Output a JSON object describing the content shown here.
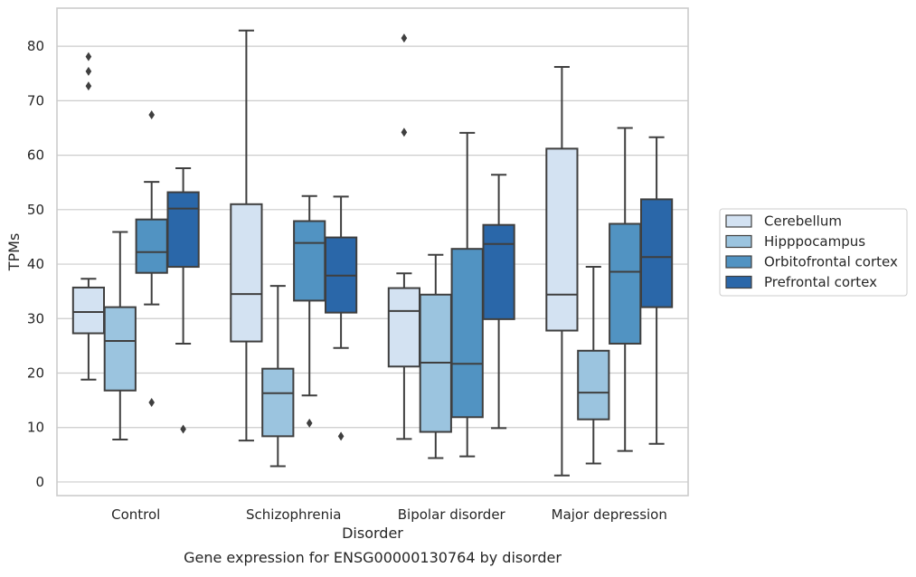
{
  "chart_data": {
    "type": "box",
    "title": "",
    "caption": "Gene expression for ENSG00000130764 by disorder",
    "xlabel": "Disorder",
    "ylabel": "TPMs",
    "ylim": [
      -2.5,
      87
    ],
    "yticks": [
      0,
      10,
      20,
      30,
      40,
      50,
      60,
      70,
      80
    ],
    "grid": "horizontal",
    "legend_position": "right",
    "categories": [
      "Control",
      "Schizophrenia",
      "Bipolar disorder",
      "Major depression"
    ],
    "series": [
      {
        "name": "Cerebellum",
        "color": "#d3e2f2",
        "boxes": [
          {
            "whislo": 18.8,
            "q1": 27.3,
            "med": 31.2,
            "q3": 35.7,
            "whishi": 37.3,
            "fliers": [
              72.7,
              75.4,
              78.1
            ]
          },
          {
            "whislo": 7.6,
            "q1": 25.8,
            "med": 34.5,
            "q3": 51.0,
            "whishi": 82.9,
            "fliers": []
          },
          {
            "whislo": 7.9,
            "q1": 21.2,
            "med": 31.4,
            "q3": 35.6,
            "whishi": 38.3,
            "fliers": [
              64.2,
              81.5
            ]
          },
          {
            "whislo": 1.2,
            "q1": 27.8,
            "med": 34.4,
            "q3": 61.2,
            "whishi": 76.2,
            "fliers": []
          }
        ]
      },
      {
        "name": "Hipppocampus",
        "color": "#9bc4df",
        "boxes": [
          {
            "whislo": 7.8,
            "q1": 16.8,
            "med": 25.9,
            "q3": 32.1,
            "whishi": 45.9,
            "fliers": []
          },
          {
            "whislo": 2.9,
            "q1": 8.4,
            "med": 16.3,
            "q3": 20.8,
            "whishi": 36.0,
            "fliers": []
          },
          {
            "whislo": 4.4,
            "q1": 9.2,
            "med": 21.9,
            "q3": 34.4,
            "whishi": 41.7,
            "fliers": []
          },
          {
            "whislo": 3.4,
            "q1": 11.5,
            "med": 16.4,
            "q3": 24.1,
            "whishi": 39.5,
            "fliers": []
          }
        ]
      },
      {
        "name": "Orbitofrontal cortex",
        "color": "#5193c2",
        "boxes": [
          {
            "whislo": 32.6,
            "q1": 38.4,
            "med": 42.2,
            "q3": 48.2,
            "whishi": 55.1,
            "fliers": [
              14.6,
              67.4
            ]
          },
          {
            "whislo": 15.9,
            "q1": 33.3,
            "med": 43.9,
            "q3": 47.9,
            "whishi": 52.5,
            "fliers": [
              10.8
            ]
          },
          {
            "whislo": 4.7,
            "q1": 11.9,
            "med": 21.7,
            "q3": 42.8,
            "whishi": 64.1,
            "fliers": []
          },
          {
            "whislo": 5.7,
            "q1": 25.4,
            "med": 38.6,
            "q3": 47.4,
            "whishi": 65.0,
            "fliers": []
          }
        ]
      },
      {
        "name": "Prefrontal cortex",
        "color": "#2a67a9",
        "boxes": [
          {
            "whislo": 25.4,
            "q1": 39.5,
            "med": 50.2,
            "q3": 53.2,
            "whishi": 57.6,
            "fliers": [
              9.7
            ]
          },
          {
            "whislo": 24.6,
            "q1": 31.1,
            "med": 37.9,
            "q3": 44.9,
            "whishi": 52.4,
            "fliers": [
              8.4
            ]
          },
          {
            "whislo": 9.9,
            "q1": 29.9,
            "med": 43.7,
            "q3": 47.2,
            "whishi": 56.4,
            "fliers": []
          },
          {
            "whislo": 7.0,
            "q1": 32.1,
            "med": 41.3,
            "q3": 51.9,
            "whishi": 63.3,
            "fliers": []
          }
        ]
      }
    ]
  }
}
